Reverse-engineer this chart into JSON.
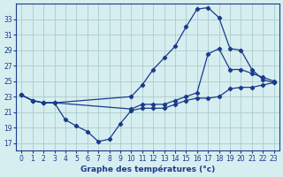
{
  "xlabel": "Graphe des températures (°c)",
  "bg_color": "#d6eef0",
  "grid_color": "#aacccc",
  "line_color": "#1a3a8a",
  "xlim": [
    -0.5,
    23.5
  ],
  "ylim": [
    16,
    35
  ],
  "yticks": [
    17,
    19,
    21,
    23,
    25,
    27,
    29,
    31,
    33
  ],
  "xticks": [
    0,
    1,
    2,
    3,
    4,
    5,
    6,
    7,
    8,
    9,
    10,
    11,
    12,
    13,
    14,
    15,
    16,
    17,
    18,
    19,
    20,
    21,
    22,
    23
  ],
  "line1_x": [
    0,
    1,
    2,
    3,
    10,
    11,
    12,
    13,
    14,
    15,
    16,
    17,
    18,
    19,
    20,
    21,
    22,
    23
  ],
  "line1_y": [
    23.2,
    22.5,
    22.2,
    22.2,
    23.0,
    24.5,
    26.5,
    28.0,
    29.5,
    32.0,
    34.3,
    34.5,
    33.2,
    29.2,
    29.0,
    26.5,
    25.2,
    24.8
  ],
  "line2_x": [
    0,
    1,
    2,
    3,
    10,
    11,
    12,
    13,
    14,
    15,
    16,
    17,
    18,
    19,
    20,
    21,
    22,
    23
  ],
  "line2_y": [
    23.2,
    22.5,
    22.2,
    22.2,
    21.4,
    22.0,
    22.0,
    22.0,
    22.5,
    23.0,
    23.5,
    28.5,
    29.2,
    26.5,
    26.5,
    26.0,
    25.5,
    25.0
  ],
  "line3_x": [
    0,
    1,
    2,
    3,
    4,
    5,
    6,
    7,
    8,
    9,
    10,
    11,
    12,
    13,
    14,
    15,
    16,
    17,
    18,
    19,
    20,
    21,
    22,
    23
  ],
  "line3_y": [
    23.2,
    22.5,
    22.2,
    22.2,
    20.0,
    19.2,
    18.5,
    17.2,
    17.5,
    19.5,
    21.2,
    21.5,
    21.5,
    21.5,
    22.0,
    22.5,
    22.8,
    22.8,
    23.0,
    24.0,
    24.2,
    24.2,
    24.5,
    24.8
  ]
}
